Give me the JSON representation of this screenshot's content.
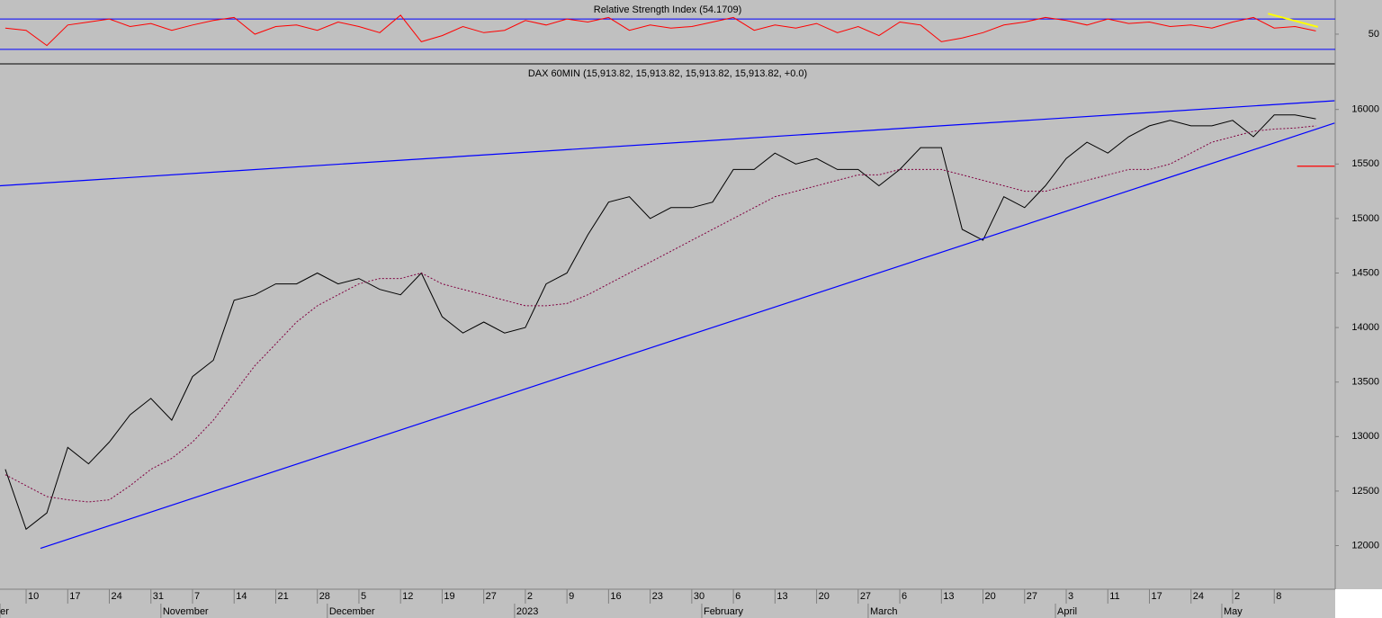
{
  "chart_data": [
    {
      "type": "line",
      "title": "Relative Strength Index (54.1709)",
      "ylim": [
        12,
        95
      ],
      "yticks": [
        50
      ],
      "hlines": [
        30,
        70
      ],
      "hline_color": "#0000ff",
      "series": [
        {
          "color": "#ff0000",
          "values": [
            58,
            55,
            35,
            62,
            66,
            70,
            60,
            64,
            55,
            62,
            68,
            72,
            50,
            60,
            62,
            55,
            66,
            60,
            52,
            75,
            40,
            48,
            60,
            52,
            55,
            68,
            62,
            70,
            66,
            72,
            55,
            62,
            58,
            60,
            66,
            72,
            55,
            62,
            58,
            64,
            52,
            60,
            48,
            66,
            62,
            40,
            45,
            52,
            62,
            66,
            72,
            68,
            62,
            70,
            64,
            66,
            60,
            62,
            58,
            66,
            72,
            58,
            60,
            54.1709
          ]
        }
      ],
      "trendlines": [
        {
          "color": "#ffff00",
          "x": [
            60.7,
            63.1
          ],
          "y": [
            77,
            59.5
          ]
        }
      ]
    },
    {
      "type": "line",
      "title": "DAX 60MIN (15,913.82, 15,913.82, 15,913.82, 15,913.82, +0.0)",
      "categories": [
        null,
        "10",
        null,
        "17",
        null,
        "24",
        null,
        "31",
        null,
        "7",
        null,
        "14",
        null,
        "21",
        null,
        "28",
        null,
        "5",
        null,
        "12",
        null,
        "19",
        null,
        "27",
        null,
        "2",
        null,
        "9",
        null,
        "16",
        null,
        "23",
        null,
        "30",
        null,
        "6",
        null,
        "13",
        null,
        "20",
        null,
        "27",
        null,
        "6",
        null,
        "13",
        null,
        "20",
        null,
        "27",
        null,
        "3",
        null,
        "11",
        null,
        "17",
        null,
        "24",
        null,
        "2",
        null,
        "8",
        null,
        null
      ],
      "months": [
        "ber",
        null,
        null,
        null,
        null,
        null,
        null,
        null,
        "November",
        null,
        null,
        null,
        null,
        null,
        null,
        null,
        "December",
        null,
        null,
        null,
        null,
        null,
        null,
        null,
        null,
        "2023",
        null,
        null,
        null,
        null,
        null,
        null,
        null,
        null,
        "February",
        null,
        null,
        null,
        null,
        null,
        null,
        null,
        "March",
        null,
        null,
        null,
        null,
        null,
        null,
        null,
        null,
        "April",
        null,
        null,
        null,
        null,
        null,
        null,
        null,
        "May",
        null,
        null,
        null,
        null
      ],
      "ylim": [
        11600,
        16410
      ],
      "yticks": [
        12000,
        12500,
        13000,
        13500,
        14000,
        14500,
        15000,
        15500,
        16000
      ],
      "series": [
        {
          "color": "#000000",
          "values": [
            12700,
            12150,
            12300,
            12900,
            12750,
            12950,
            13200,
            13350,
            13150,
            13550,
            13700,
            14250,
            14300,
            14400,
            14400,
            14500,
            14400,
            14450,
            14350,
            14300,
            14500,
            14100,
            13950,
            14050,
            13950,
            14000,
            14400,
            14500,
            14850,
            15150,
            15200,
            15000,
            15100,
            15100,
            15150,
            15450,
            15450,
            15600,
            15500,
            15550,
            15450,
            15450,
            15300,
            15450,
            15650,
            15650,
            14900,
            14800,
            15200,
            15100,
            15300,
            15550,
            15700,
            15600,
            15750,
            15850,
            15900,
            15850,
            15850,
            15900,
            15750,
            15950,
            15950,
            15913.82
          ]
        },
        {
          "color": "#800040",
          "dashed": true,
          "values": [
            12650,
            12550,
            12450,
            12420,
            12400,
            12420,
            12550,
            12700,
            12800,
            12950,
            13150,
            13400,
            13650,
            13850,
            14050,
            14200,
            14300,
            14400,
            14450,
            14450,
            14500,
            14400,
            14350,
            14300,
            14250,
            14200,
            14200,
            14220,
            14300,
            14400,
            14500,
            14600,
            14700,
            14800,
            14900,
            15000,
            15100,
            15200,
            15250,
            15300,
            15350,
            15400,
            15400,
            15450,
            15450,
            15450,
            15400,
            15350,
            15300,
            15250,
            15250,
            15300,
            15350,
            15400,
            15450,
            15450,
            15500,
            15600,
            15700,
            15750,
            15800,
            15820,
            15830,
            15850
          ]
        }
      ],
      "trendlines": [
        {
          "color": "#0000ff",
          "x": [
            -0.26,
            63.9
          ],
          "y": [
            15300,
            16080
          ]
        },
        {
          "color": "#0000ff",
          "x": [
            1.69,
            63.9
          ],
          "y": [
            11975,
            15875
          ]
        },
        {
          "color": "#ff0000",
          "x": [
            62.1,
            63.9
          ],
          "y": [
            15480,
            15480
          ]
        }
      ]
    }
  ]
}
